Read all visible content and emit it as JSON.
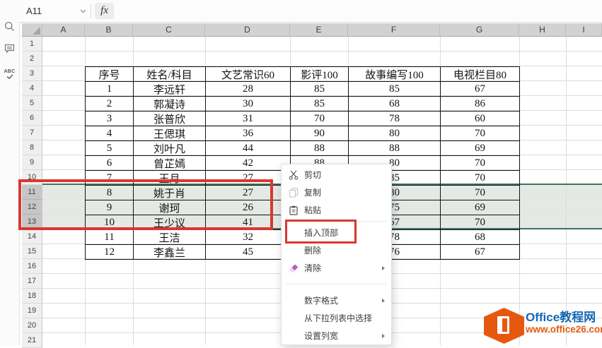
{
  "window": {
    "name_box": "A11",
    "fx_label": "fx",
    "formula_value": ""
  },
  "sidebar": {
    "icons": [
      {
        "name": "search-icon"
      },
      {
        "name": "comment-icon"
      },
      {
        "name": "spellcheck-icon",
        "label": "ABC"
      }
    ]
  },
  "sheet": {
    "column_letters": [
      "A",
      "B",
      "C",
      "D",
      "E",
      "F",
      "G",
      "H",
      "I"
    ],
    "row_numbers": [
      1,
      2,
      3,
      4,
      5,
      6,
      7,
      8,
      9,
      10,
      11,
      12,
      13,
      14,
      15,
      16,
      17,
      18,
      19,
      20,
      21
    ],
    "selected_rows": [
      11,
      12,
      13
    ]
  },
  "table": {
    "start_cell": "B3",
    "headers": [
      "序号",
      "姓名/科目",
      "文艺常识60",
      "影评100",
      "故事编写100",
      "电视栏目80"
    ],
    "rows": [
      [
        "1",
        "李远轩",
        "28",
        "85",
        "85",
        "67"
      ],
      [
        "2",
        "郭凝诗",
        "30",
        "85",
        "68",
        "86"
      ],
      [
        "3",
        "张普欣",
        "31",
        "70",
        "78",
        "60"
      ],
      [
        "4",
        "王偲琪",
        "36",
        "90",
        "80",
        "70"
      ],
      [
        "5",
        "刘叶凡",
        "44",
        "88",
        "88",
        "69"
      ],
      [
        "6",
        "曾芷嫣",
        "42",
        "88",
        "80",
        "70"
      ],
      [
        "7",
        "王月",
        "27",
        "",
        "85",
        "70"
      ],
      [
        "8",
        "姚于肖",
        "27",
        "",
        "80",
        "70"
      ],
      [
        "9",
        "谢珂",
        "26",
        "",
        "75",
        "69"
      ],
      [
        "10",
        "王少议",
        "41",
        "",
        "67",
        "70"
      ],
      [
        "11",
        "王洁",
        "32",
        "",
        "78",
        "68"
      ],
      [
        "12",
        "李鑫兰",
        "45",
        "",
        "76",
        "67"
      ]
    ]
  },
  "context_menu": {
    "items": [
      {
        "id": "cut",
        "label": "剪切",
        "icon": "scissors-icon"
      },
      {
        "id": "copy",
        "label": "复制",
        "icon": "copy-icon"
      },
      {
        "id": "paste",
        "label": "粘贴",
        "icon": "paste-icon"
      },
      {
        "type": "separator"
      },
      {
        "id": "insert-top",
        "label": "插入顶部",
        "annotated": true
      },
      {
        "id": "delete",
        "label": "删除"
      },
      {
        "id": "clear",
        "label": "清除",
        "icon": "eraser-icon",
        "submenu": true
      },
      {
        "type": "separator",
        "wide": true
      },
      {
        "id": "number-format",
        "label": "数字格式",
        "submenu": true
      },
      {
        "id": "pick-from-dropdown",
        "label": "从下拉列表中选择"
      },
      {
        "id": "set-column-width",
        "label": "设置列宽",
        "submenu": true
      }
    ]
  },
  "annotations": {
    "highlight_color": "#d93831"
  },
  "watermark": {
    "title": "Office教程网",
    "url": "www.office26.com",
    "brand_blue": "#1467b3",
    "brand_orange": "#e5590f"
  }
}
